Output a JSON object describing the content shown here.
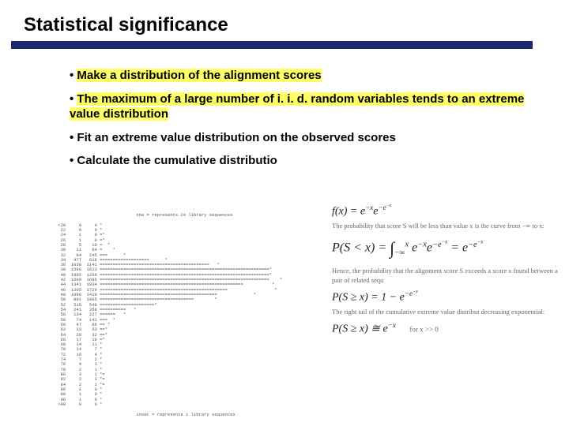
{
  "title": "Statistical significance",
  "bullets": {
    "b1": "Make a distribution of the alignment scores",
    "b2": "The maximum of a large number of i. i. d. random variables tends to an extreme value distribution",
    "b3": "Fit an extreme value distribution on the observed scores",
    "b4": "Calculate the cumulative distributio"
  },
  "histogram": {
    "header": "       one = represents 24 library sequences",
    "rows": [
      [
        "<20",
        "0",
        "0",
        "*"
      ],
      [
        "22",
        "0",
        "0",
        "*"
      ],
      [
        "24",
        "1",
        "0",
        "=*"
      ],
      [
        "26",
        "1",
        "0",
        "=*"
      ],
      [
        "28",
        "5",
        "10",
        "=  *"
      ],
      [
        "30",
        "11",
        "64",
        "=    *"
      ],
      [
        "32",
        "94",
        "245",
        "===      *"
      ],
      [
        "34",
        "477",
        "618",
        "===================      *"
      ],
      [
        "36",
        "1038",
        "1141",
        "==========================================   *"
      ],
      [
        "38",
        "1596",
        "1613",
        "=================================================================*"
      ],
      [
        "40",
        "1985",
        "1259",
        "=================================================================*"
      ],
      [
        "42",
        "1609",
        "1695",
        "=================================================================    *"
      ],
      [
        "44",
        "1341",
        "1834",
        "=======================================================           *"
      ],
      [
        "46",
        "1205",
        "1729",
        "=================================================                  *"
      ],
      [
        "48",
        "1098",
        "1419",
        "=============================================              *"
      ],
      [
        "50",
        "891",
        "1065",
        "====================================        *"
      ],
      [
        "52",
        "515",
        "548",
        "=====================*"
      ],
      [
        "54",
        "241",
        "358",
        "==========   *"
      ],
      [
        "56",
        "134",
        "227",
        "======   *"
      ],
      [
        "58",
        "74",
        "141",
        "===  *"
      ],
      [
        "60",
        "47",
        "86",
        "== *"
      ],
      [
        "62",
        "33",
        "53",
        "==*"
      ],
      [
        "64",
        "28",
        "32",
        "==*"
      ],
      [
        "66",
        "17",
        "19",
        "=*"
      ],
      [
        "68",
        "14",
        "11",
        "*"
      ],
      [
        "70",
        "14",
        "7",
        "*"
      ],
      [
        "72",
        "10",
        "4",
        "*"
      ],
      [
        "74",
        "7",
        "2",
        "*"
      ],
      [
        "76",
        "4",
        "1",
        "*"
      ],
      [
        "78",
        "2",
        "1",
        "*"
      ],
      [
        "80",
        "3",
        "1",
        "*="
      ],
      [
        "82",
        "2",
        "1",
        "*="
      ],
      [
        "84",
        "2",
        "1",
        "*="
      ],
      [
        "86",
        "1",
        "0",
        "*"
      ],
      [
        "88",
        "1",
        "0",
        "*"
      ],
      [
        "90",
        "1",
        "0",
        "*"
      ],
      [
        ">90",
        "0",
        "0",
        "*"
      ]
    ],
    "footer": "       inset = represents 1 library sequences"
  },
  "formulas": {
    "f1_lhs": "f(x) = e",
    "f1_sup1": "−x",
    "f1_mid": "e",
    "f1_sup2": "−e",
    "f1_sup2b": "−x",
    "desc1": "The probability that score S will be less than value x is the curve from −∞ to x:",
    "f2_lhs": "P(S < x) = ",
    "f2_int_low": "−∞",
    "f2_int_high": "x",
    "f2_body1": "e",
    "f2_body1_sup": "−x",
    "f2_body2": "e",
    "f2_body2_sup": "−e",
    "f2_body2_supb": "−x",
    "f2_eq": " = e",
    "f2_rhs_sup": "−e",
    "f2_rhs_supb": "−x",
    "desc2": "Hence, the probability that the alignment score S exceeds a score x found between a pair of related sequ",
    "f3_lhs": "P(S ≥ x) = 1 − e",
    "f3_sup": "−e",
    "f3_supb": "−x",
    "desc3": "The right tail of the cumulative extreme value distribut decreasing exponential:",
    "f4_lhs": "P(S ≥ x) ≅ e",
    "f4_sup": "−x",
    "f4_cond": "for x >> 0"
  }
}
